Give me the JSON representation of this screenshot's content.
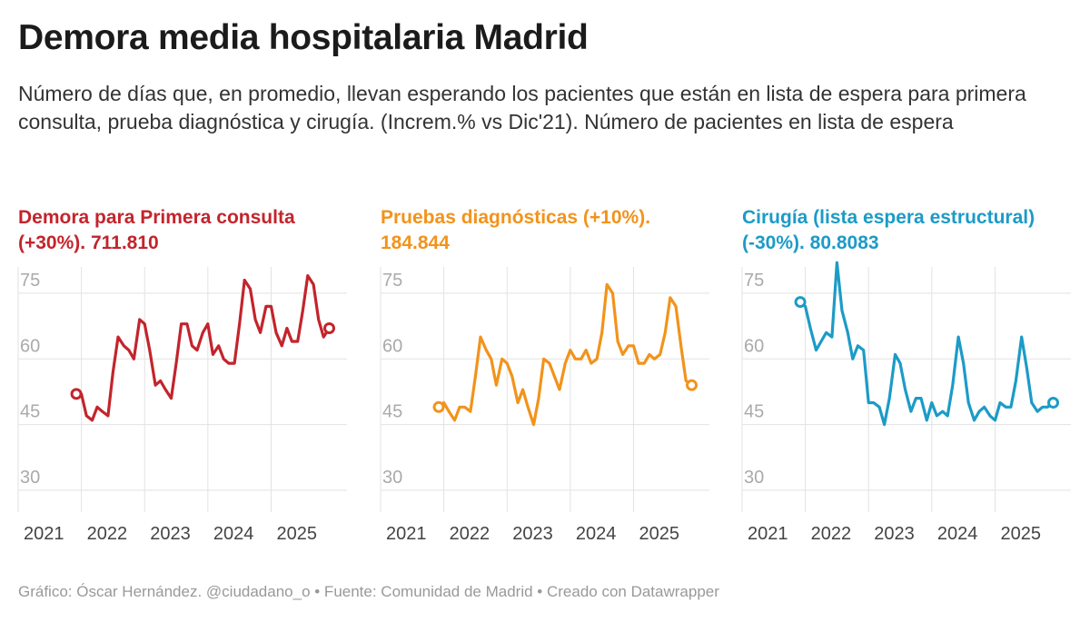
{
  "title": "Demora media hospitalaria Madrid",
  "subtitle": "Número de días que, en promedio, llevan esperando los pacientes que están en lista de espera para primera consulta, prueba diagnóstica y cirugía. (Increm.% vs Dic'21). Número de pacientes en lista de espera",
  "footer": "Gráfico: Óscar Hernández. @ciudadano_o • Fuente: Comunidad de Madrid • Creado con Datawrapper",
  "chart_data": [
    {
      "type": "line",
      "title": "Demora para Primera consulta (+30%). 711.810",
      "color": "#c3242c",
      "ylim": [
        25,
        81
      ],
      "xlim": [
        2021,
        2026.2
      ],
      "yticks": [
        "30",
        "45",
        "60",
        "75"
      ],
      "xticks": [
        "2021",
        "2022",
        "2023",
        "2024",
        "2025"
      ],
      "grid": true,
      "x": [
        2021.92,
        2022.0,
        2022.08,
        2022.17,
        2022.25,
        2022.33,
        2022.42,
        2022.5,
        2022.58,
        2022.67,
        2022.75,
        2022.83,
        2022.92,
        2023.0,
        2023.08,
        2023.17,
        2023.25,
        2023.33,
        2023.42,
        2023.5,
        2023.58,
        2023.67,
        2023.75,
        2023.83,
        2023.92,
        2024.0,
        2024.08,
        2024.17,
        2024.25,
        2024.33,
        2024.42,
        2024.5,
        2024.58,
        2024.67,
        2024.75,
        2024.83,
        2024.92,
        2025.0,
        2025.08,
        2025.17,
        2025.25,
        2025.33,
        2025.42,
        2025.5,
        2025.58,
        2025.67,
        2025.75,
        2025.83,
        2025.92
      ],
      "values": [
        52,
        52,
        47,
        46,
        49,
        48,
        47,
        57,
        65,
        63,
        62,
        60,
        69,
        68,
        62,
        54,
        55,
        53,
        51,
        59,
        68,
        68,
        63,
        62,
        66,
        68,
        61,
        63,
        60,
        59,
        59,
        68,
        78,
        76,
        69,
        66,
        72,
        72,
        66,
        63,
        67,
        64,
        64,
        71,
        79,
        77,
        69,
        65,
        67
      ]
    },
    {
      "type": "line",
      "title": "Pruebas diagnósticas (+10%). 184.844",
      "color": "#f2931b",
      "ylim": [
        25,
        81
      ],
      "xlim": [
        2021,
        2026.2
      ],
      "yticks": [
        "30",
        "45",
        "60",
        "75"
      ],
      "xticks": [
        "2021",
        "2022",
        "2023",
        "2024",
        "2025"
      ],
      "grid": true,
      "x": [
        2021.92,
        2022.0,
        2022.08,
        2022.17,
        2022.25,
        2022.33,
        2022.42,
        2022.5,
        2022.58,
        2022.67,
        2022.75,
        2022.83,
        2022.92,
        2023.0,
        2023.08,
        2023.17,
        2023.25,
        2023.33,
        2023.42,
        2023.5,
        2023.58,
        2023.67,
        2023.75,
        2023.83,
        2023.92,
        2024.0,
        2024.08,
        2024.17,
        2024.25,
        2024.33,
        2024.42,
        2024.5,
        2024.58,
        2024.67,
        2024.75,
        2024.83,
        2024.92,
        2025.0,
        2025.08,
        2025.17,
        2025.25,
        2025.33,
        2025.42,
        2025.5,
        2025.58,
        2025.67,
        2025.75,
        2025.83,
        2025.92
      ],
      "values": [
        49,
        50,
        48,
        46,
        49,
        49,
        48,
        56,
        65,
        62,
        60,
        54,
        60,
        59,
        56,
        50,
        53,
        49,
        45,
        51,
        60,
        59,
        56,
        53,
        59,
        62,
        60,
        60,
        62,
        59,
        60,
        66,
        77,
        75,
        64,
        61,
        63,
        63,
        59,
        59,
        61,
        60,
        61,
        66,
        74,
        72,
        63,
        55,
        54
      ]
    },
    {
      "type": "line",
      "title": "Cirugía (lista espera estructural) (-30%). 80.8083",
      "color": "#1c9bc7",
      "ylim": [
        25,
        81
      ],
      "xlim": [
        2021,
        2026.2
      ],
      "yticks": [
        "30",
        "45",
        "60",
        "75"
      ],
      "xticks": [
        "2021",
        "2022",
        "2023",
        "2024",
        "2025"
      ],
      "grid": true,
      "x": [
        2021.92,
        2022.0,
        2022.08,
        2022.17,
        2022.25,
        2022.33,
        2022.42,
        2022.5,
        2022.58,
        2022.67,
        2022.75,
        2022.83,
        2022.92,
        2023.0,
        2023.08,
        2023.17,
        2023.25,
        2023.33,
        2023.42,
        2023.5,
        2023.58,
        2023.67,
        2023.75,
        2023.83,
        2023.92,
        2024.0,
        2024.08,
        2024.17,
        2024.25,
        2024.33,
        2024.42,
        2024.5,
        2024.58,
        2024.67,
        2024.75,
        2024.83,
        2024.92,
        2025.0,
        2025.08,
        2025.17,
        2025.25,
        2025.33,
        2025.42,
        2025.5,
        2025.58,
        2025.67,
        2025.75,
        2025.83,
        2025.92
      ],
      "values": [
        73,
        72,
        67,
        62,
        64,
        66,
        65,
        82,
        71,
        66,
        60,
        63,
        62,
        50,
        50,
        49,
        45,
        51,
        61,
        59,
        53,
        48,
        51,
        51,
        46,
        50,
        47,
        48,
        47,
        54,
        65,
        59,
        50,
        46,
        48,
        49,
        47,
        46,
        50,
        49,
        49,
        55,
        65,
        58,
        50,
        48,
        49,
        49,
        50
      ]
    }
  ]
}
